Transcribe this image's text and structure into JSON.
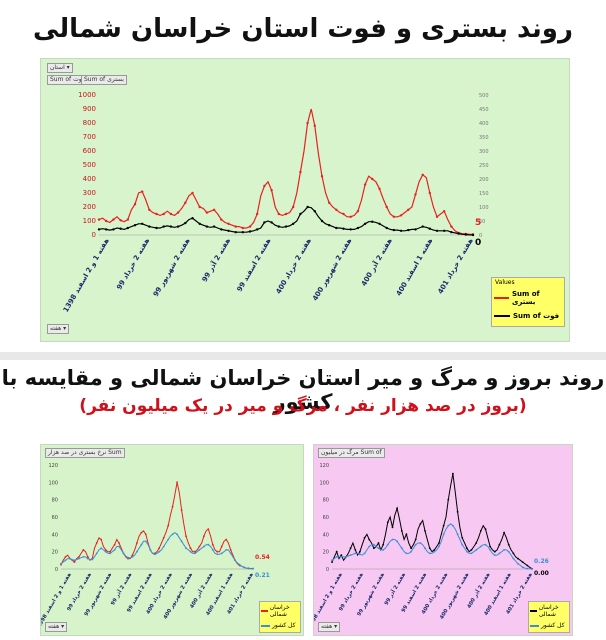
{
  "titles": {
    "main": "روند بستری و فوت استان خراسان شمالی",
    "second": "روند بروز و مرگ و میر استان خراسان شمالی و مقایسه با کشور",
    "second_sub": "(بروز در صد هزار نفر ، مرگ و میر در یک میلیون نفر)"
  },
  "colors": {
    "red": "#e8201f",
    "black": "#000000",
    "blue": "#3a8fd6",
    "green_bg": "#d8f4cc",
    "pink_bg": "#f6c8f2",
    "legend_bg": "#ffff66"
  },
  "chart_data": [
    {
      "type": "line",
      "filter_label": "استان",
      "header_buttons": [
        "Sum of فوت",
        "Sum of بستری"
      ],
      "footer_button": "هفته",
      "legend_title": "Values",
      "ylim_left": [
        0,
        1000
      ],
      "ylim_right": [
        0,
        500
      ],
      "y_ticks_left": [
        "0",
        "100",
        "200",
        "300",
        "400",
        "500",
        "600",
        "700",
        "800",
        "900",
        "1000"
      ],
      "y_ticks_right": [
        "0",
        "50",
        "100",
        "150",
        "200",
        "250",
        "300",
        "350",
        "400",
        "450",
        "500"
      ],
      "x_tick_labels": [
        "هفته 1 و 2 اسفند 1398",
        "هفته 2 خرداد 99",
        "هفته 2 شهریور 99",
        "هفته 2 آذر 99",
        "هفته 2 اسفند 99",
        "هفته 2 خرداد 400",
        "هفته 2 شهریور 400",
        "هفته 2 آذر 400",
        "هفته 1 اسفند 400",
        "هفته 2 خرداد 401"
      ],
      "end_labels": [
        "5",
        "0"
      ],
      "series": [
        {
          "name": "Sum of بستری",
          "color": "red",
          "values": [
            110,
            120,
            100,
            90,
            110,
            130,
            105,
            95,
            110,
            180,
            220,
            300,
            310,
            250,
            180,
            160,
            150,
            140,
            150,
            170,
            150,
            140,
            160,
            190,
            230,
            280,
            300,
            250,
            200,
            190,
            160,
            170,
            180,
            150,
            110,
            90,
            80,
            70,
            60,
            60,
            50,
            50,
            60,
            90,
            150,
            280,
            350,
            380,
            320,
            200,
            150,
            140,
            150,
            160,
            200,
            300,
            450,
            600,
            800,
            900,
            780,
            580,
            420,
            300,
            230,
            200,
            180,
            160,
            150,
            130,
            130,
            140,
            170,
            250,
            360,
            420,
            400,
            380,
            330,
            260,
            200,
            150,
            130,
            130,
            140,
            160,
            180,
            200,
            290,
            380,
            430,
            410,
            300,
            200,
            130,
            150,
            170,
            110,
            60,
            30,
            15,
            10,
            8,
            6,
            5
          ]
        },
        {
          "name": "Sum of فوت",
          "color": "black",
          "values": [
            40,
            45,
            40,
            35,
            40,
            50,
            45,
            40,
            50,
            60,
            70,
            80,
            80,
            70,
            60,
            55,
            50,
            50,
            60,
            65,
            60,
            55,
            60,
            70,
            85,
            110,
            120,
            100,
            80,
            70,
            60,
            55,
            60,
            50,
            40,
            35,
            30,
            25,
            20,
            20,
            20,
            20,
            25,
            30,
            40,
            50,
            90,
            100,
            90,
            70,
            60,
            55,
            60,
            65,
            80,
            100,
            150,
            170,
            200,
            195,
            170,
            130,
            100,
            80,
            70,
            60,
            50,
            50,
            45,
            40,
            40,
            40,
            50,
            60,
            80,
            95,
            95,
            90,
            80,
            65,
            50,
            40,
            35,
            35,
            30,
            30,
            35,
            40,
            40,
            50,
            60,
            55,
            45,
            35,
            30,
            30,
            30,
            30,
            20,
            15,
            10,
            5,
            3,
            1,
            0
          ]
        }
      ]
    },
    {
      "type": "line",
      "header_button": "نرخ بستری در صد هزار Sum",
      "footer_button": "هفته",
      "ylim": [
        0,
        120
      ],
      "y_ticks": [
        "0",
        "20",
        "40",
        "60",
        "80",
        "100",
        "120"
      ],
      "x_tick_labels": [
        "هفته 1 و 2 اسفند 1398",
        "هفته 2 خرداد 99",
        "هفته 2 شهریور 99",
        "هفته 2 آذر 99",
        "هفته 2 اسفند 99",
        "هفته 2 خرداد 400",
        "هفته 2 شهریور 400",
        "هفته 2 آذر 400",
        "هفته 1 اسفند 400",
        "هفته 2 خرداد 401"
      ],
      "end_labels": [
        "0.54",
        "0.21"
      ],
      "legend": [
        "خراسان شمالی",
        "کل کشور"
      ],
      "series": [
        {
          "name": "خراسان شمالی",
          "color": "red",
          "values": [
            5,
            10,
            14,
            16,
            12,
            10,
            8,
            12,
            14,
            18,
            22,
            20,
            14,
            10,
            12,
            24,
            30,
            36,
            34,
            26,
            22,
            20,
            20,
            24,
            28,
            34,
            30,
            24,
            18,
            14,
            12,
            12,
            16,
            22,
            30,
            38,
            42,
            44,
            40,
            30,
            22,
            18,
            18,
            20,
            24,
            30,
            36,
            42,
            50,
            62,
            72,
            86,
            100,
            88,
            68,
            52,
            38,
            30,
            24,
            20,
            20,
            22,
            26,
            30,
            38,
            44,
            46,
            38,
            28,
            22,
            20,
            20,
            26,
            32,
            34,
            30,
            22,
            16,
            10,
            6,
            4,
            3,
            2,
            1,
            0.8,
            0.6,
            0.54
          ]
        },
        {
          "name": "کل کشور",
          "color": "blue",
          "values": [
            6,
            8,
            10,
            12,
            12,
            11,
            10,
            11,
            12,
            13,
            14,
            14,
            12,
            11,
            11,
            14,
            18,
            22,
            24,
            22,
            20,
            18,
            18,
            20,
            22,
            26,
            26,
            22,
            18,
            15,
            13,
            13,
            14,
            16,
            20,
            24,
            28,
            32,
            32,
            28,
            22,
            18,
            17,
            18,
            20,
            22,
            26,
            30,
            34,
            38,
            40,
            42,
            40,
            36,
            32,
            28,
            24,
            22,
            20,
            18,
            18,
            20,
            22,
            24,
            26,
            28,
            28,
            26,
            22,
            18,
            17,
            17,
            18,
            20,
            22,
            22,
            18,
            14,
            10,
            7,
            5,
            3,
            2,
            1,
            0.6,
            0.4,
            0.21
          ]
        }
      ]
    },
    {
      "type": "line",
      "header_button": "مرگ در میلیون Sum of",
      "footer_button": "هفته",
      "ylim": [
        0,
        120
      ],
      "y_ticks": [
        "0",
        "20",
        "40",
        "60",
        "80",
        "100",
        "120"
      ],
      "x_tick_labels": [
        "هفته 1 و 2 اسفند 1398",
        "هفته 2 خرداد 99",
        "هفته 2 شهریور 99",
        "هفته 2 آذر 99",
        "هفته 2 اسفند 99",
        "هفته 2 خرداد 400",
        "هفته 2 شهریور 400",
        "هفته 2 آذر 400",
        "هفته 1 اسفند 400",
        "هفته 2 خرداد 401"
      ],
      "end_labels": [
        "0.26",
        "0.00"
      ],
      "legend": [
        "خراسان شمالی",
        "کل کشور"
      ],
      "series": [
        {
          "name": "خراسان شمالی",
          "color": "black",
          "values": [
            8,
            14,
            20,
            12,
            16,
            10,
            14,
            18,
            24,
            30,
            22,
            16,
            20,
            28,
            36,
            40,
            34,
            30,
            24,
            26,
            30,
            22,
            28,
            40,
            54,
            60,
            48,
            62,
            70,
            58,
            44,
            34,
            40,
            30,
            24,
            28,
            34,
            46,
            52,
            56,
            44,
            34,
            24,
            20,
            22,
            26,
            30,
            40,
            50,
            60,
            80,
            96,
            110,
            88,
            66,
            48,
            36,
            30,
            24,
            20,
            22,
            26,
            30,
            36,
            44,
            50,
            46,
            36,
            26,
            22,
            20,
            22,
            28,
            34,
            42,
            36,
            28,
            22,
            18,
            14,
            12,
            10,
            8,
            6,
            4,
            2,
            0.26
          ]
        },
        {
          "name": "کل کشور",
          "color": "blue",
          "values": [
            10,
            12,
            14,
            14,
            14,
            14,
            14,
            15,
            16,
            17,
            18,
            18,
            17,
            16,
            18,
            22,
            26,
            28,
            28,
            26,
            24,
            22,
            22,
            24,
            28,
            32,
            34,
            34,
            32,
            28,
            24,
            20,
            18,
            18,
            20,
            24,
            28,
            30,
            30,
            28,
            24,
            20,
            18,
            18,
            20,
            22,
            26,
            32,
            40,
            46,
            50,
            52,
            50,
            46,
            40,
            34,
            28,
            24,
            20,
            18,
            18,
            20,
            22,
            24,
            26,
            28,
            28,
            26,
            22,
            18,
            16,
            16,
            18,
            20,
            22,
            22,
            20,
            16,
            12,
            9,
            6,
            4,
            2,
            1,
            0.5,
            0.2,
            0
          ]
        }
      ]
    }
  ]
}
